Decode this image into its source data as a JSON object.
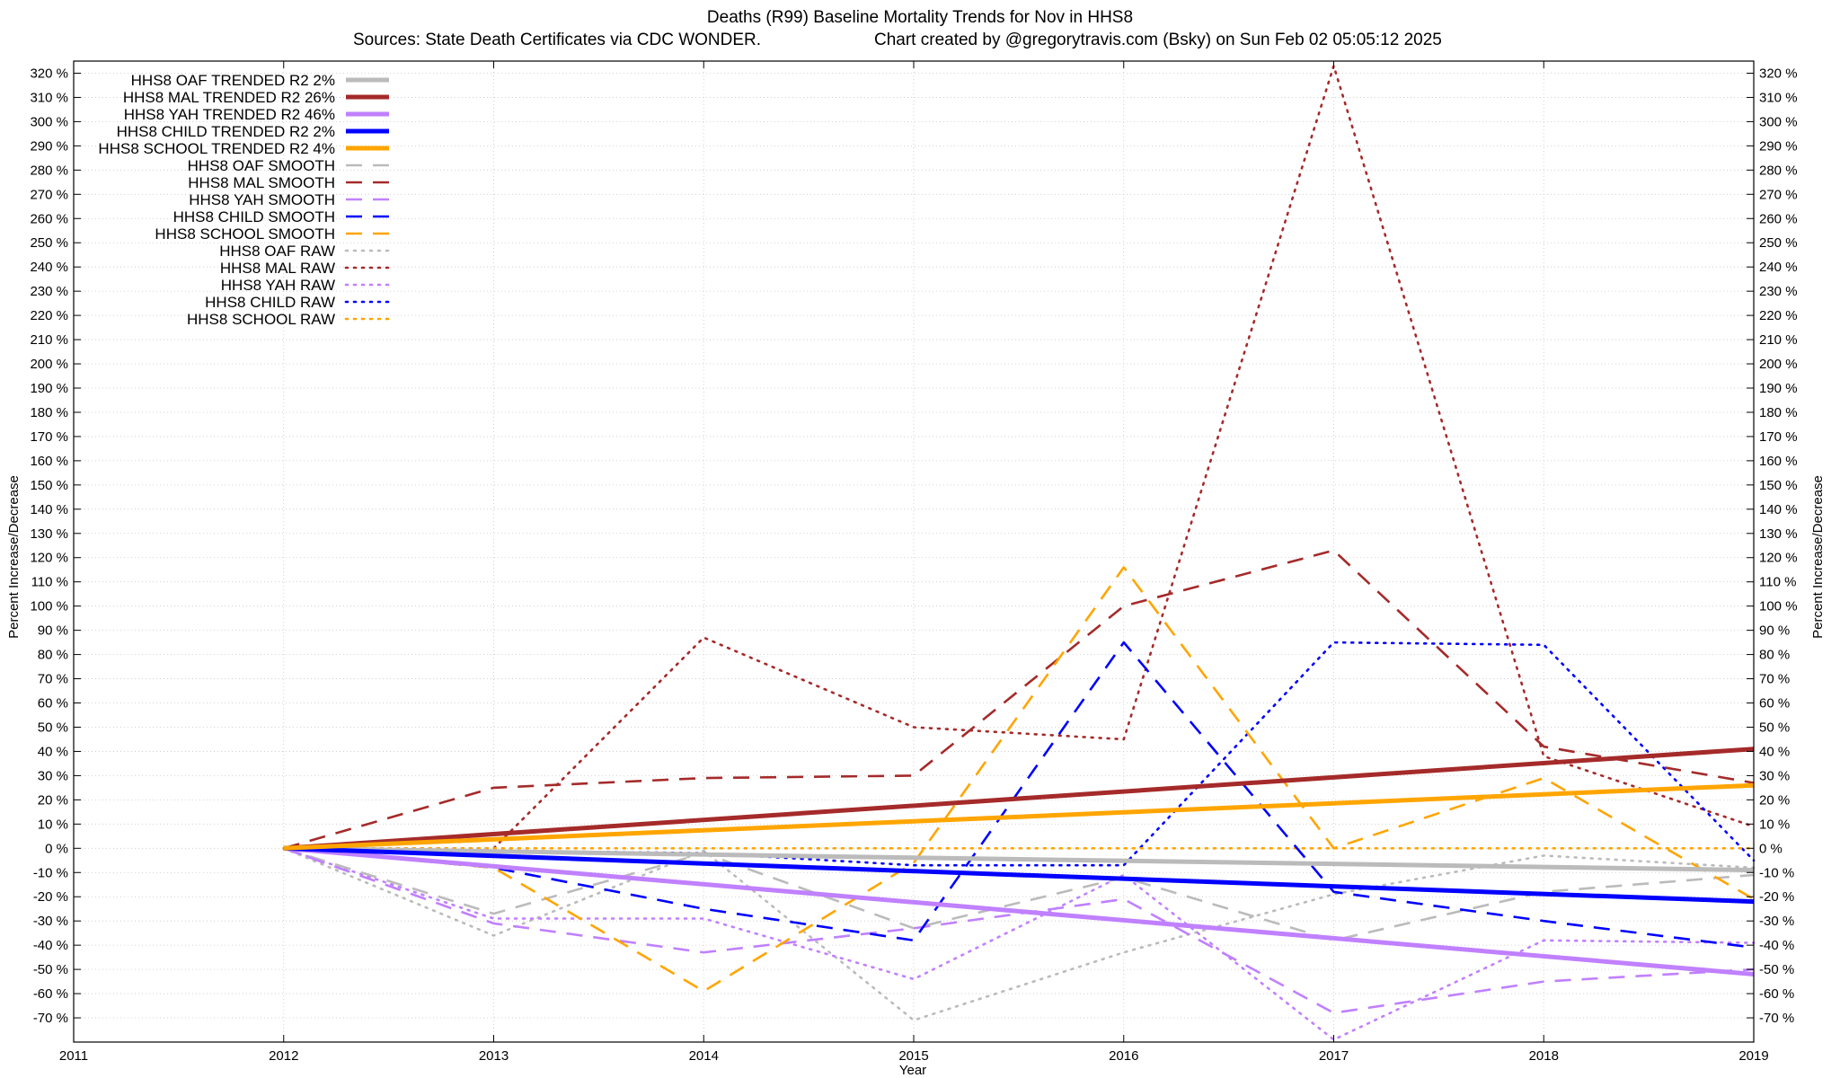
{
  "chart_data": {
    "type": "line",
    "title": "Deaths (R99)  Baseline Mortality Trends for Nov in HHS8",
    "subtitle_left": "Sources: State Death Certificates via CDC WONDER.",
    "subtitle_right": "Chart created by @gregorytravis.com (Bsky) on Sun Feb 02 05:05:12 2025",
    "xlabel": "Year",
    "ylabel": "Percent Increase/Decrease",
    "xlim": [
      2011,
      2019
    ],
    "ylim": [
      -80,
      325
    ],
    "x_ticks": [
      {
        "value": 2011,
        "label": "2011"
      },
      {
        "value": 2012,
        "label": "2012"
      },
      {
        "value": 2013,
        "label": "2013"
      },
      {
        "value": 2014,
        "label": "2014"
      },
      {
        "value": 2015,
        "label": "2015"
      },
      {
        "value": 2016,
        "label": "2016"
      },
      {
        "value": 2017,
        "label": "2017"
      },
      {
        "value": 2018,
        "label": "2018"
      },
      {
        "value": 2019,
        "label": "2019"
      }
    ],
    "y_ticks": [
      {
        "value": 320,
        "label": "320 %"
      },
      {
        "value": 310,
        "label": "310 %"
      },
      {
        "value": 300,
        "label": "300 %"
      },
      {
        "value": 290,
        "label": "290 %"
      },
      {
        "value": 280,
        "label": "280 %"
      },
      {
        "value": 270,
        "label": "270 %"
      },
      {
        "value": 260,
        "label": "260 %"
      },
      {
        "value": 250,
        "label": "250 %"
      },
      {
        "value": 240,
        "label": "240 %"
      },
      {
        "value": 230,
        "label": "230 %"
      },
      {
        "value": 220,
        "label": "220 %"
      },
      {
        "value": 210,
        "label": "210 %"
      },
      {
        "value": 200,
        "label": "200 %"
      },
      {
        "value": 190,
        "label": "190 %"
      },
      {
        "value": 180,
        "label": "180 %"
      },
      {
        "value": 170,
        "label": "170 %"
      },
      {
        "value": 160,
        "label": "160 %"
      },
      {
        "value": 150,
        "label": "150 %"
      },
      {
        "value": 140,
        "label": "140 %"
      },
      {
        "value": 130,
        "label": "130 %"
      },
      {
        "value": 120,
        "label": "120 %"
      },
      {
        "value": 110,
        "label": "110 %"
      },
      {
        "value": 100,
        "label": "100 %"
      },
      {
        "value": 90,
        "label": "90 %"
      },
      {
        "value": 80,
        "label": "80 %"
      },
      {
        "value": 70,
        "label": "70 %"
      },
      {
        "value": 60,
        "label": "60 %"
      },
      {
        "value": 50,
        "label": "50 %"
      },
      {
        "value": 40,
        "label": "40 %"
      },
      {
        "value": 30,
        "label": "30 %"
      },
      {
        "value": 20,
        "label": "20 %"
      },
      {
        "value": 10,
        "label": "10 %"
      },
      {
        "value": 0,
        "label": "0 %"
      },
      {
        "value": -10,
        "label": "-10 %"
      },
      {
        "value": -20,
        "label": "-20 %"
      },
      {
        "value": -30,
        "label": "-30 %"
      },
      {
        "value": -40,
        "label": "-40 %"
      },
      {
        "value": -50,
        "label": "-50 %"
      },
      {
        "value": -60,
        "label": "-60 %"
      },
      {
        "value": -70,
        "label": "-70 %"
      }
    ],
    "grid": true,
    "legend_position": "top-left",
    "series": [
      {
        "name": "HHS8 OAF TRENDED R2  2%",
        "color": "#bbbbbb",
        "style": "solid",
        "x": [
          2012,
          2019
        ],
        "y": [
          0,
          -9
        ]
      },
      {
        "name": "HHS8 MAL TRENDED R2  26%",
        "color": "#a52a2a",
        "style": "solid",
        "x": [
          2012,
          2019
        ],
        "y": [
          0,
          41
        ]
      },
      {
        "name": "HHS8 YAH TRENDED R2  46%",
        "color": "#c080ff",
        "style": "solid",
        "x": [
          2012,
          2019
        ],
        "y": [
          0,
          -52
        ]
      },
      {
        "name": "HHS8 CHILD TRENDED R2  2%",
        "color": "#0000ff",
        "style": "solid",
        "x": [
          2012,
          2019
        ],
        "y": [
          0,
          -22
        ]
      },
      {
        "name": "HHS8 SCHOOL TRENDED R2  4%",
        "color": "#ffa500",
        "style": "solid",
        "x": [
          2012,
          2019
        ],
        "y": [
          0,
          26
        ]
      },
      {
        "name": "HHS8 OAF SMOOTH",
        "color": "#bbbbbb",
        "style": "dashed",
        "x": [
          2012,
          2013,
          2014,
          2015,
          2016,
          2017,
          2018,
          2019
        ],
        "y": [
          0,
          -27,
          -2,
          -33,
          -12,
          -38,
          -18,
          -11
        ]
      },
      {
        "name": "HHS8 MAL SMOOTH",
        "color": "#a52a2a",
        "style": "dashed",
        "x": [
          2012,
          2013,
          2014,
          2015,
          2016,
          2017,
          2018,
          2019
        ],
        "y": [
          0,
          25,
          29,
          30,
          100,
          123,
          42,
          27
        ]
      },
      {
        "name": "HHS8 YAH SMOOTH",
        "color": "#c080ff",
        "style": "dashed",
        "x": [
          2012,
          2013,
          2014,
          2015,
          2016,
          2017,
          2018,
          2019
        ],
        "y": [
          0,
          -31,
          -43,
          -33,
          -21,
          -68,
          -55,
          -50
        ]
      },
      {
        "name": "HHS8 CHILD SMOOTH",
        "color": "#0000ff",
        "style": "dashed",
        "x": [
          2012,
          2013,
          2014,
          2015,
          2016,
          2017,
          2018,
          2019
        ],
        "y": [
          0,
          -8,
          -25,
          -38,
          85,
          -18,
          -30,
          -41
        ]
      },
      {
        "name": "HHS8 SCHOOL SMOOTH",
        "color": "#ffa500",
        "style": "dashed",
        "x": [
          2012,
          2013,
          2014,
          2015,
          2016,
          2017,
          2018,
          2019
        ],
        "y": [
          0,
          -8,
          -59,
          -6,
          116,
          0,
          29,
          -21
        ]
      },
      {
        "name": "HHS8 OAF RAW",
        "color": "#bbbbbb",
        "style": "dotted",
        "x": [
          2012,
          2013,
          2014,
          2015,
          2016,
          2017,
          2018,
          2019
        ],
        "y": [
          0,
          -36,
          -1,
          -71,
          -43,
          -19,
          -3,
          -8
        ]
      },
      {
        "name": "HHS8 MAL RAW",
        "color": "#a52a2a",
        "style": "dotted",
        "x": [
          2012,
          2013,
          2014,
          2015,
          2016,
          2017,
          2018,
          2019
        ],
        "y": [
          0,
          0,
          87,
          50,
          45,
          323,
          38,
          9
        ]
      },
      {
        "name": "HHS8 YAH RAW",
        "color": "#c080ff",
        "style": "dotted",
        "x": [
          2012,
          2013,
          2014,
          2015,
          2016,
          2017,
          2018,
          2019
        ],
        "y": [
          0,
          -29,
          -29,
          -54,
          -11,
          -79,
          -38,
          -39
        ]
      },
      {
        "name": "HHS8 CHILD RAW",
        "color": "#0000ff",
        "style": "dotted",
        "x": [
          2012,
          2013,
          2014,
          2015,
          2016,
          2017,
          2018,
          2019
        ],
        "y": [
          0,
          -1,
          -2,
          -7,
          -7,
          85,
          84,
          -5
        ]
      },
      {
        "name": "HHS8 SCHOOL RAW",
        "color": "#ffa500",
        "style": "dotted",
        "x": [
          2012,
          2013,
          2014,
          2015,
          2016,
          2017,
          2018,
          2019
        ],
        "y": [
          0,
          0,
          0,
          0,
          0,
          0,
          0,
          0
        ]
      }
    ]
  }
}
